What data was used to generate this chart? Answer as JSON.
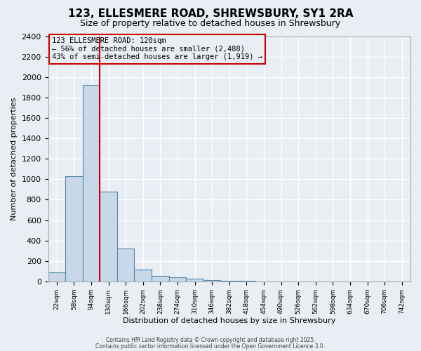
{
  "title": "123, ELLESMERE ROAD, SHREWSBURY, SY1 2RA",
  "subtitle": "Size of property relative to detached houses in Shrewsbury",
  "xlabel": "Distribution of detached houses by size in Shrewsbury",
  "ylabel": "Number of detached properties",
  "bar_values": [
    90,
    1030,
    1920,
    880,
    320,
    115,
    52,
    40,
    25,
    15,
    5,
    3,
    2,
    1,
    1,
    1,
    0,
    0,
    0,
    0,
    0
  ],
  "categories": [
    "22sqm",
    "58sqm",
    "94sqm",
    "130sqm",
    "166sqm",
    "202sqm",
    "238sqm",
    "274sqm",
    "310sqm",
    "346sqm",
    "382sqm",
    "418sqm",
    "454sqm",
    "490sqm",
    "526sqm",
    "562sqm",
    "598sqm",
    "634sqm",
    "670sqm",
    "706sqm",
    "742sqm"
  ],
  "bar_color": "#c8d8e8",
  "bar_edge_color": "#5588aa",
  "annotation_box_color": "#cc0000",
  "vline_color": "#cc0000",
  "vline_x": 2.5,
  "property_label": "123 ELLESMERE ROAD: 120sqm",
  "annotation_line1": "← 56% of detached houses are smaller (2,488)",
  "annotation_line2": "43% of semi-detached houses are larger (1,919) →",
  "ylim": [
    0,
    2400
  ],
  "yticks": [
    0,
    200,
    400,
    600,
    800,
    1000,
    1200,
    1400,
    1600,
    1800,
    2000,
    2200,
    2400
  ],
  "background_color": "#e8eef4",
  "grid_color": "#ffffff",
  "footer_line1": "Contains HM Land Registry data © Crown copyright and database right 2025.",
  "footer_line2": "Contains public sector information licensed under the Open Government Licence 3.0."
}
